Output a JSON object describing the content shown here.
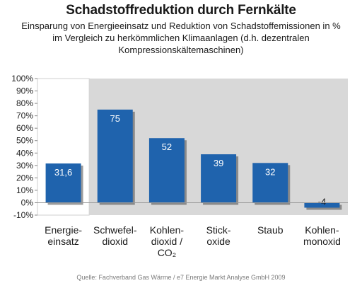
{
  "title": "Schadstoffreduktion durch Fernkälte",
  "subtitle_lines": [
    "Einsparung von Energieeinsatz und Reduktion von Schadstoffemissionen in %",
    "im Vergleich zu herkömmlichen Klimaanlagen (d.h. dezentralen",
    "Kompressionskältemaschinen)"
  ],
  "source": "Quelle: Fachverband Gas Wärme / e7 Energie Markt Analyse GmbH 2009",
  "colors": {
    "bar": "#1f63ad",
    "bar_shadow": "#4a4a4a",
    "plot_background_shaded": "#d8d8d8",
    "plot_background_plain": "#ffffff"
  },
  "chart_data": {
    "type": "bar",
    "categories": [
      [
        "Energie-",
        "einsatz"
      ],
      [
        "Schwefel-",
        "dioxid"
      ],
      [
        "Kohlen-",
        "dioxid /",
        "CO₂"
      ],
      [
        "Stick-",
        "oxide"
      ],
      [
        "Staub"
      ],
      [
        "Kohlen-",
        "monoxid"
      ]
    ],
    "values": [
      31.6,
      75,
      52,
      39,
      32,
      -4
    ],
    "data_labels": [
      "31,6",
      "75",
      "52",
      "39",
      "32",
      "-4"
    ],
    "y_ticks": [
      100,
      90,
      80,
      70,
      60,
      50,
      40,
      30,
      20,
      10,
      0,
      -10
    ],
    "y_tick_labels": [
      "100%",
      "90%",
      "80%",
      "70%",
      "60%",
      "50%",
      "40%",
      "30%",
      "20%",
      "10%",
      "0%",
      "-10%"
    ],
    "ylim": [
      -10,
      100
    ],
    "grid": false,
    "shaded_region_starts_at_category": 1
  }
}
